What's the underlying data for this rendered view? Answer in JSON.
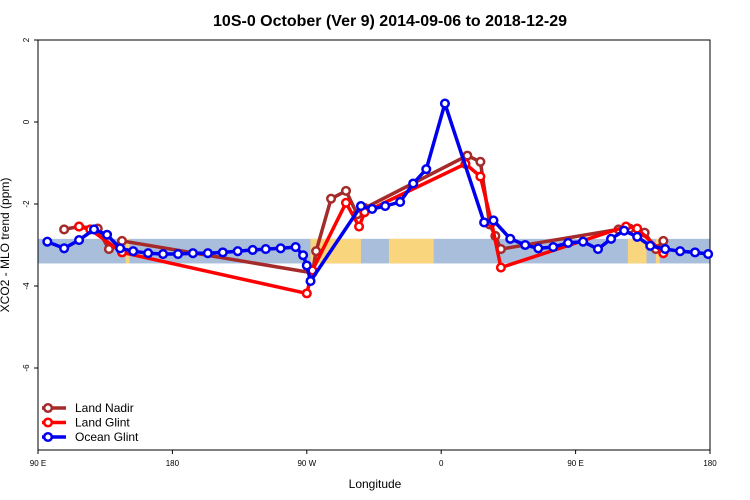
{
  "chart_data": {
    "type": "line",
    "title": "10S-0 October (Ver 9)   2014-09-06 to 2018-12-29",
    "xlabel": "Longitude",
    "ylabel": "XCO2 - MLO trend (ppm)",
    "xlim": [
      -180,
      180
    ],
    "ylim": [
      -8,
      2
    ],
    "x_ticks": [
      {
        "value": -180,
        "label": "90 E"
      },
      {
        "value": -108,
        "label": "180"
      },
      {
        "value": -36,
        "label": "90 W"
      },
      {
        "value": 36,
        "label": "0"
      },
      {
        "value": 108,
        "label": "90 E"
      },
      {
        "value": 180,
        "label": "180"
      }
    ],
    "y_ticks": [
      {
        "value": 2,
        "label": "2"
      },
      {
        "value": 0,
        "label": "0"
      },
      {
        "value": -2,
        "label": "-2"
      },
      {
        "value": -4,
        "label": "-4"
      },
      {
        "value": -6,
        "label": "-6"
      }
    ],
    "legend_position": "bottom-left",
    "map_strip": {
      "y_range": [
        -3.45,
        -2.85
      ],
      "ocean_color": "#a9bedb",
      "land_color": "#f9d57d"
    },
    "series": [
      {
        "name": "Land Nadir",
        "color": "#a52a2a",
        "points": [
          [
            -166,
            -2.62
          ],
          [
            -158,
            -2.55
          ],
          [
            -148,
            -2.6
          ],
          [
            -142,
            -3.1
          ],
          [
            -135,
            -2.9
          ],
          [
            -33,
            -3.68
          ],
          [
            -31,
            -3.15
          ],
          [
            -23,
            -1.87
          ],
          [
            -15,
            -1.68
          ],
          [
            -9,
            -2.25
          ],
          [
            -5,
            -2.1
          ],
          [
            50,
            -0.82
          ],
          [
            57,
            -0.97
          ],
          [
            62,
            -2.5
          ],
          [
            65,
            -2.78
          ],
          [
            68,
            -3.1
          ],
          [
            131,
            -2.62
          ],
          [
            137,
            -2.6
          ],
          [
            145,
            -2.7
          ],
          [
            151,
            -3.1
          ],
          [
            155,
            -2.9
          ]
        ]
      },
      {
        "name": "Land Glint",
        "color": "#ff0000",
        "points": [
          [
            -158,
            -2.55
          ],
          [
            -152,
            -2.62
          ],
          [
            -135,
            -3.18
          ],
          [
            -36,
            -4.18
          ],
          [
            -33,
            -3.62
          ],
          [
            -15,
            -1.97
          ],
          [
            -8,
            -2.55
          ],
          [
            -5,
            -2.2
          ],
          [
            49,
            -1.02
          ],
          [
            57,
            -1.33
          ],
          [
            63,
            -2.45
          ],
          [
            68,
            -3.55
          ],
          [
            135,
            -2.55
          ],
          [
            141,
            -2.6
          ],
          [
            155,
            -3.2
          ]
        ]
      },
      {
        "name": "Ocean Glint",
        "color": "#0000ee",
        "points": [
          [
            -175,
            -2.92
          ],
          [
            -166,
            -3.08
          ],
          [
            -158,
            -2.88
          ],
          [
            -150,
            -2.62
          ],
          [
            -143,
            -2.75
          ],
          [
            -136,
            -3.08
          ],
          [
            -129,
            -3.15
          ],
          [
            -121,
            -3.2
          ],
          [
            -113,
            -3.22
          ],
          [
            -105,
            -3.22
          ],
          [
            -97,
            -3.2
          ],
          [
            -89,
            -3.2
          ],
          [
            -81,
            -3.18
          ],
          [
            -73,
            -3.15
          ],
          [
            -65,
            -3.12
          ],
          [
            -58,
            -3.1
          ],
          [
            -50,
            -3.08
          ],
          [
            -42,
            -3.05
          ],
          [
            -38,
            -3.25
          ],
          [
            -36,
            -3.5
          ],
          [
            -34,
            -3.88
          ],
          [
            -7,
            -2.05
          ],
          [
            -1,
            -2.12
          ],
          [
            6,
            -2.05
          ],
          [
            14,
            -1.95
          ],
          [
            21,
            -1.5
          ],
          [
            28,
            -1.15
          ],
          [
            38,
            0.45
          ],
          [
            59,
            -2.45
          ],
          [
            64,
            -2.4
          ],
          [
            73,
            -2.85
          ],
          [
            81,
            -3.0
          ],
          [
            88,
            -3.08
          ],
          [
            96,
            -3.05
          ],
          [
            104,
            -2.95
          ],
          [
            112,
            -2.92
          ],
          [
            120,
            -3.1
          ],
          [
            127,
            -2.85
          ],
          [
            134,
            -2.65
          ],
          [
            141,
            -2.8
          ],
          [
            148,
            -3.02
          ],
          [
            156,
            -3.1
          ],
          [
            164,
            -3.15
          ],
          [
            172,
            -3.18
          ],
          [
            179,
            -3.22
          ]
        ]
      }
    ]
  }
}
